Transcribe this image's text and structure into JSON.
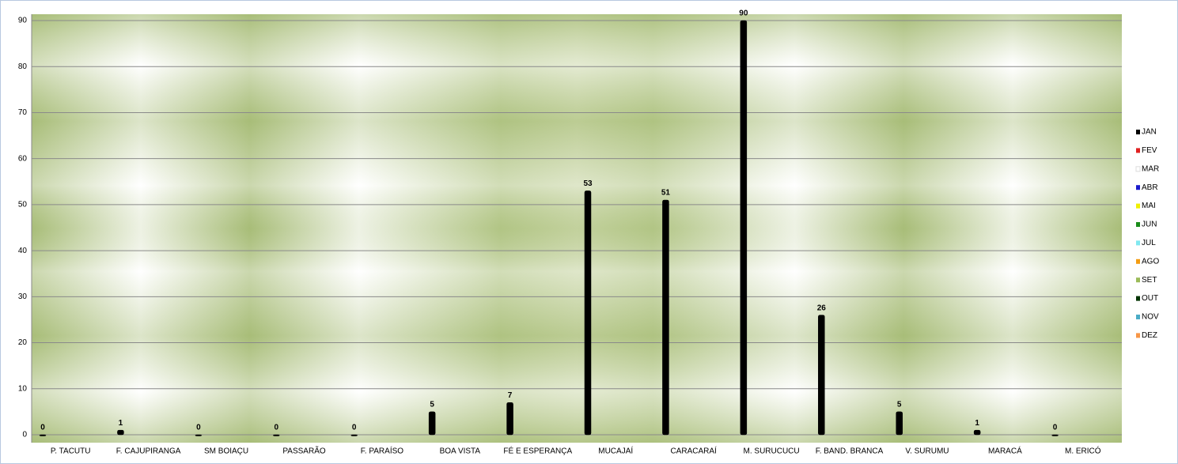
{
  "chart_data": {
    "type": "bar",
    "categories": [
      "P. TACUTU",
      "F. CAJUPIRANGA",
      "SM BOIAÇU",
      "PASSARÃO",
      "F. PARAÍSO",
      "BOA VISTA",
      "FÉ E ESPERANÇA",
      "MUCAJAÍ",
      "CARACARAÍ",
      "M. SURUCUCU",
      "F. BAND. BRANCA",
      "V. SURUMU",
      "MARACÁ",
      "M. ERICÓ"
    ],
    "series": [
      {
        "name": "JAN",
        "color": "#000000",
        "values": [
          0,
          1,
          0,
          0,
          0,
          5,
          7,
          53,
          51,
          90,
          26,
          5,
          1,
          0
        ]
      },
      {
        "name": "FEV",
        "color": "#e02020",
        "values": [
          null,
          null,
          null,
          null,
          null,
          null,
          null,
          null,
          null,
          null,
          null,
          null,
          null,
          null
        ]
      },
      {
        "name": "MAR",
        "color": "#ffffff",
        "values": [
          null,
          null,
          null,
          null,
          null,
          null,
          null,
          null,
          null,
          null,
          null,
          null,
          null,
          null
        ]
      },
      {
        "name": "ABR",
        "color": "#1a1acc",
        "values": [
          null,
          null,
          null,
          null,
          null,
          null,
          null,
          null,
          null,
          null,
          null,
          null,
          null,
          null
        ]
      },
      {
        "name": "MAI",
        "color": "#f0f000",
        "values": [
          null,
          null,
          null,
          null,
          null,
          null,
          null,
          null,
          null,
          null,
          null,
          null,
          null,
          null
        ]
      },
      {
        "name": "JUN",
        "color": "#1a8c1a",
        "values": [
          null,
          null,
          null,
          null,
          null,
          null,
          null,
          null,
          null,
          null,
          null,
          null,
          null,
          null
        ]
      },
      {
        "name": "JUL",
        "color": "#80e8f0",
        "values": [
          null,
          null,
          null,
          null,
          null,
          null,
          null,
          null,
          null,
          null,
          null,
          null,
          null,
          null
        ]
      },
      {
        "name": "AGO",
        "color": "#f39c12",
        "values": [
          null,
          null,
          null,
          null,
          null,
          null,
          null,
          null,
          null,
          null,
          null,
          null,
          null,
          null
        ]
      },
      {
        "name": "SET",
        "color": "#9bbb59",
        "values": [
          null,
          null,
          null,
          null,
          null,
          null,
          null,
          null,
          null,
          null,
          null,
          null,
          null,
          null
        ]
      },
      {
        "name": "OUT",
        "color": "#003300",
        "values": [
          null,
          null,
          null,
          null,
          null,
          null,
          null,
          null,
          null,
          null,
          null,
          null,
          null,
          null
        ]
      },
      {
        "name": "NOV",
        "color": "#4bacc6",
        "values": [
          null,
          null,
          null,
          null,
          null,
          null,
          null,
          null,
          null,
          null,
          null,
          null,
          null,
          null
        ]
      },
      {
        "name": "DEZ",
        "color": "#f79646",
        "values": [
          null,
          null,
          null,
          null,
          null,
          null,
          null,
          null,
          null,
          null,
          null,
          null,
          null,
          null
        ]
      }
    ],
    "ylim": [
      0,
      90
    ],
    "yticks": [
      0,
      10,
      20,
      30,
      40,
      50,
      60,
      70,
      80,
      90
    ],
    "grid": true,
    "legend": "right"
  }
}
